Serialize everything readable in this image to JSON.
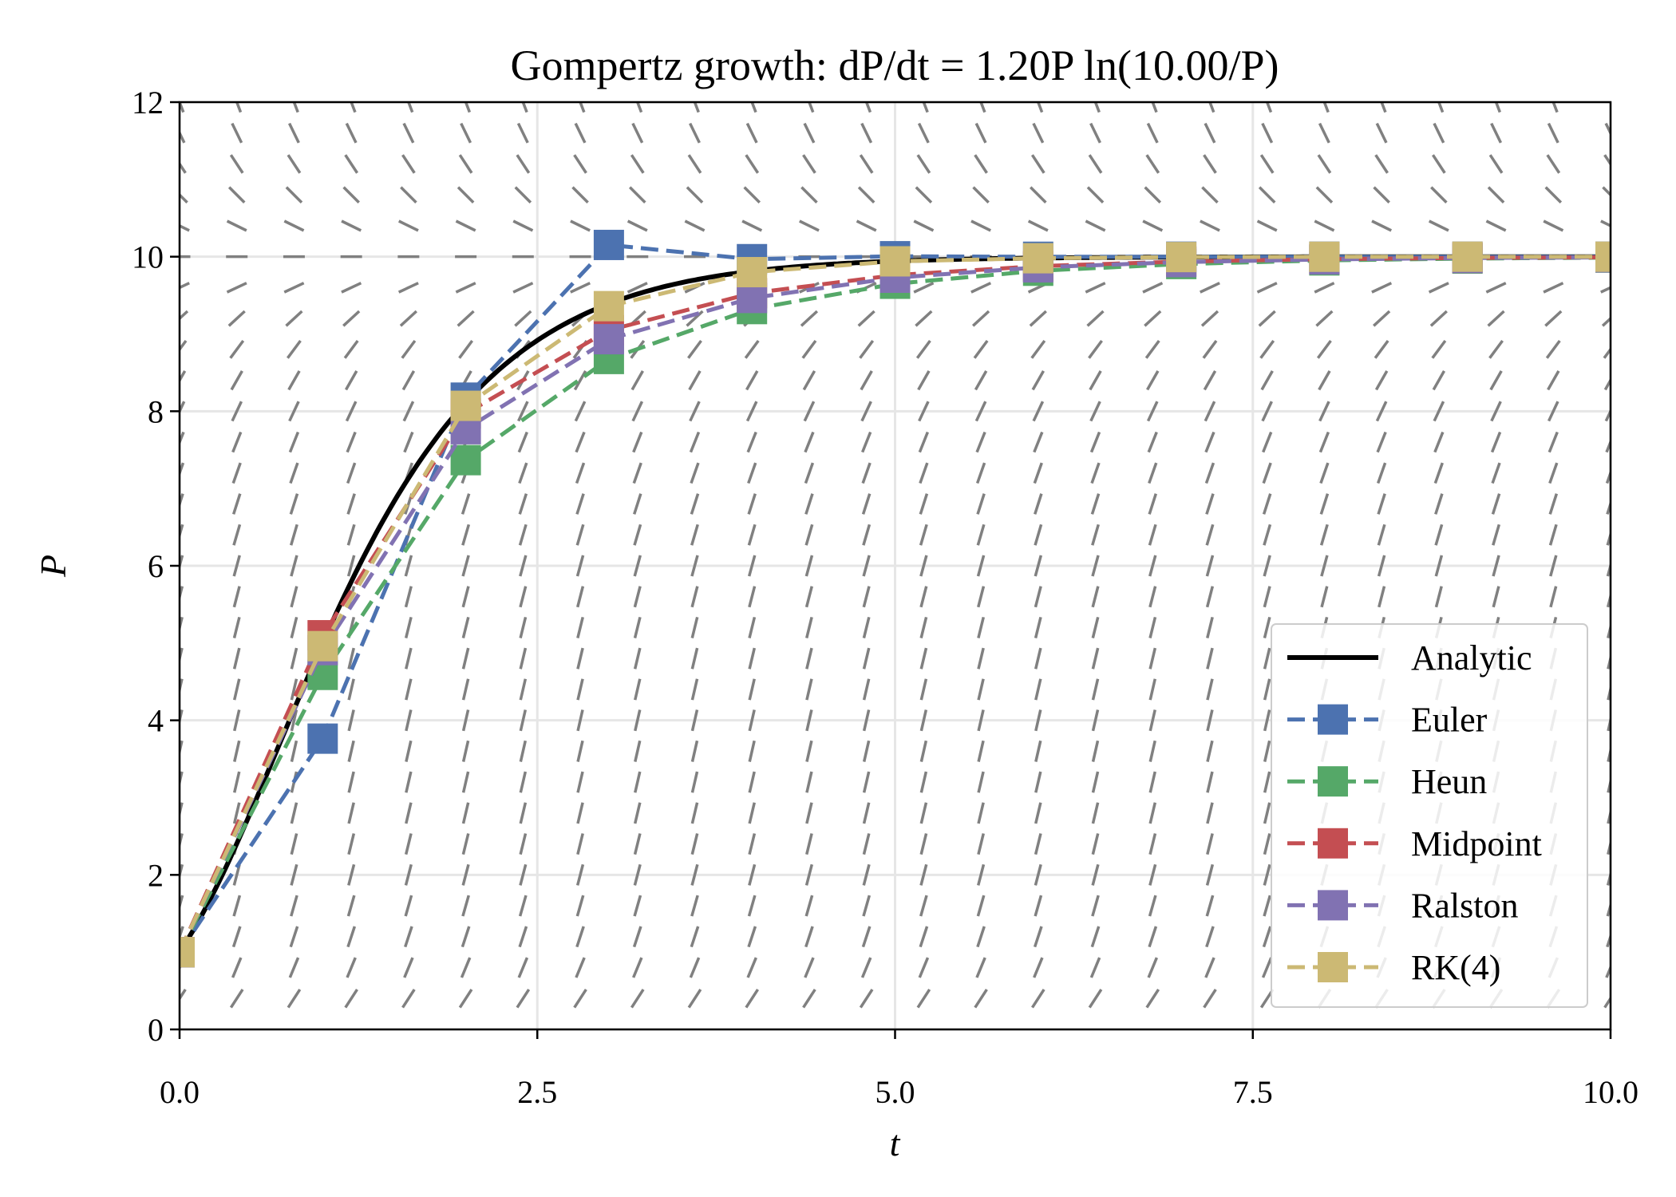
{
  "chart_data": {
    "type": "line",
    "title": "Gompertz growth: dP/dt = 1.20P ln(10.00/P)",
    "xlabel": "t",
    "ylabel": "P",
    "xlim": [
      0,
      10
    ],
    "ylim": [
      0,
      12
    ],
    "xticks": [
      "0.0",
      "2.5",
      "5.0",
      "7.5",
      "10.0"
    ],
    "yticks": [
      "0",
      "2",
      "4",
      "6",
      "8",
      "10",
      "12"
    ],
    "grid": true,
    "legend_position": "lower-right",
    "model": {
      "r": 1.2,
      "K": 10.0,
      "P0": 1.0
    },
    "slope_field": {
      "color": "#808080"
    },
    "x": [
      0,
      1,
      2,
      3,
      4,
      5,
      6,
      7,
      8,
      9,
      10
    ],
    "series": [
      {
        "name": "Analytic",
        "color": "#000000",
        "style": "solid",
        "marker": "none"
      },
      {
        "name": "Euler",
        "color": "#4C72B0",
        "style": "dashed",
        "marker": "square",
        "values": [
          1.0,
          3.763,
          8.176,
          10.152,
          9.968,
          10.006,
          9.999,
          10.0,
          10.0,
          10.0,
          10.0
        ]
      },
      {
        "name": "Heun",
        "color": "#55A868",
        "style": "dashed",
        "marker": "square",
        "values": [
          1.0,
          4.588,
          7.367,
          8.676,
          9.322,
          9.65,
          9.818,
          9.905,
          9.952,
          9.976,
          9.988
        ]
      },
      {
        "name": "Midpoint",
        "color": "#C44E52",
        "style": "dashed",
        "marker": "square",
        "values": [
          1.0,
          5.101,
          7.97,
          9.049,
          9.528,
          9.761,
          9.878,
          9.938,
          9.969,
          9.984,
          9.992
        ]
      },
      {
        "name": "Ralston",
        "color": "#8172B2",
        "style": "dashed",
        "marker": "square",
        "values": [
          1.0,
          4.909,
          7.767,
          8.932,
          9.466,
          9.728,
          9.862,
          9.93,
          9.965,
          9.983,
          9.991
        ]
      },
      {
        "name": "RK(4)",
        "color": "#CCB974",
        "style": "dashed",
        "marker": "square",
        "values": [
          1.0,
          4.96,
          8.07,
          9.36,
          9.8,
          9.94,
          9.98,
          9.995,
          9.999,
          10.0,
          10.0
        ]
      }
    ]
  }
}
